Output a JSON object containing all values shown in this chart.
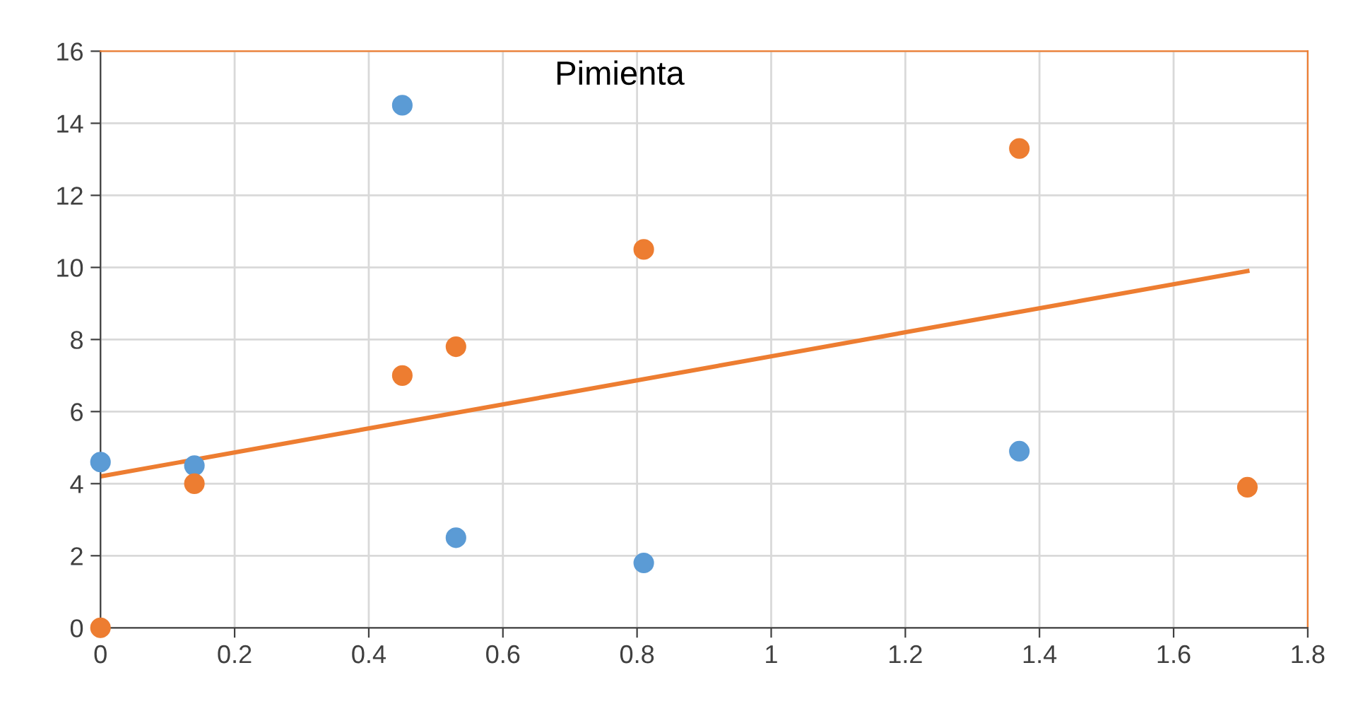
{
  "chart_data": {
    "type": "scatter",
    "title": "Pimienta",
    "series": [
      {
        "color": "#5b9bd5",
        "x": [
          0,
          0.14,
          0.45,
          0.53,
          0.81,
          1.37
        ],
        "values": [
          4.6,
          4.5,
          14.5,
          2.5,
          1.8,
          4.9
        ]
      },
      {
        "color": "#ed7d31",
        "x": [
          0,
          0.14,
          0.45,
          0.53,
          0.81,
          1.37,
          1.71
        ],
        "values": [
          0,
          4.0,
          7.0,
          7.8,
          10.5,
          13.3,
          3.9
        ]
      },
      {
        "type": "line",
        "marker": "none",
        "color": "#ed7d31",
        "x": [
          0,
          1.71
        ],
        "values": [
          4.2,
          9.9
        ]
      }
    ],
    "xlim": [
      0,
      1.8
    ],
    "xticks": [
      0,
      0.2,
      0.4,
      0.6,
      0.8,
      1,
      1.2,
      1.4,
      1.6,
      1.8
    ],
    "ylim": [
      0,
      16
    ],
    "yticks": [
      0,
      2,
      4,
      6,
      8,
      10,
      12,
      14,
      16
    ],
    "grid": true,
    "marker": "circle",
    "legend": false
  }
}
